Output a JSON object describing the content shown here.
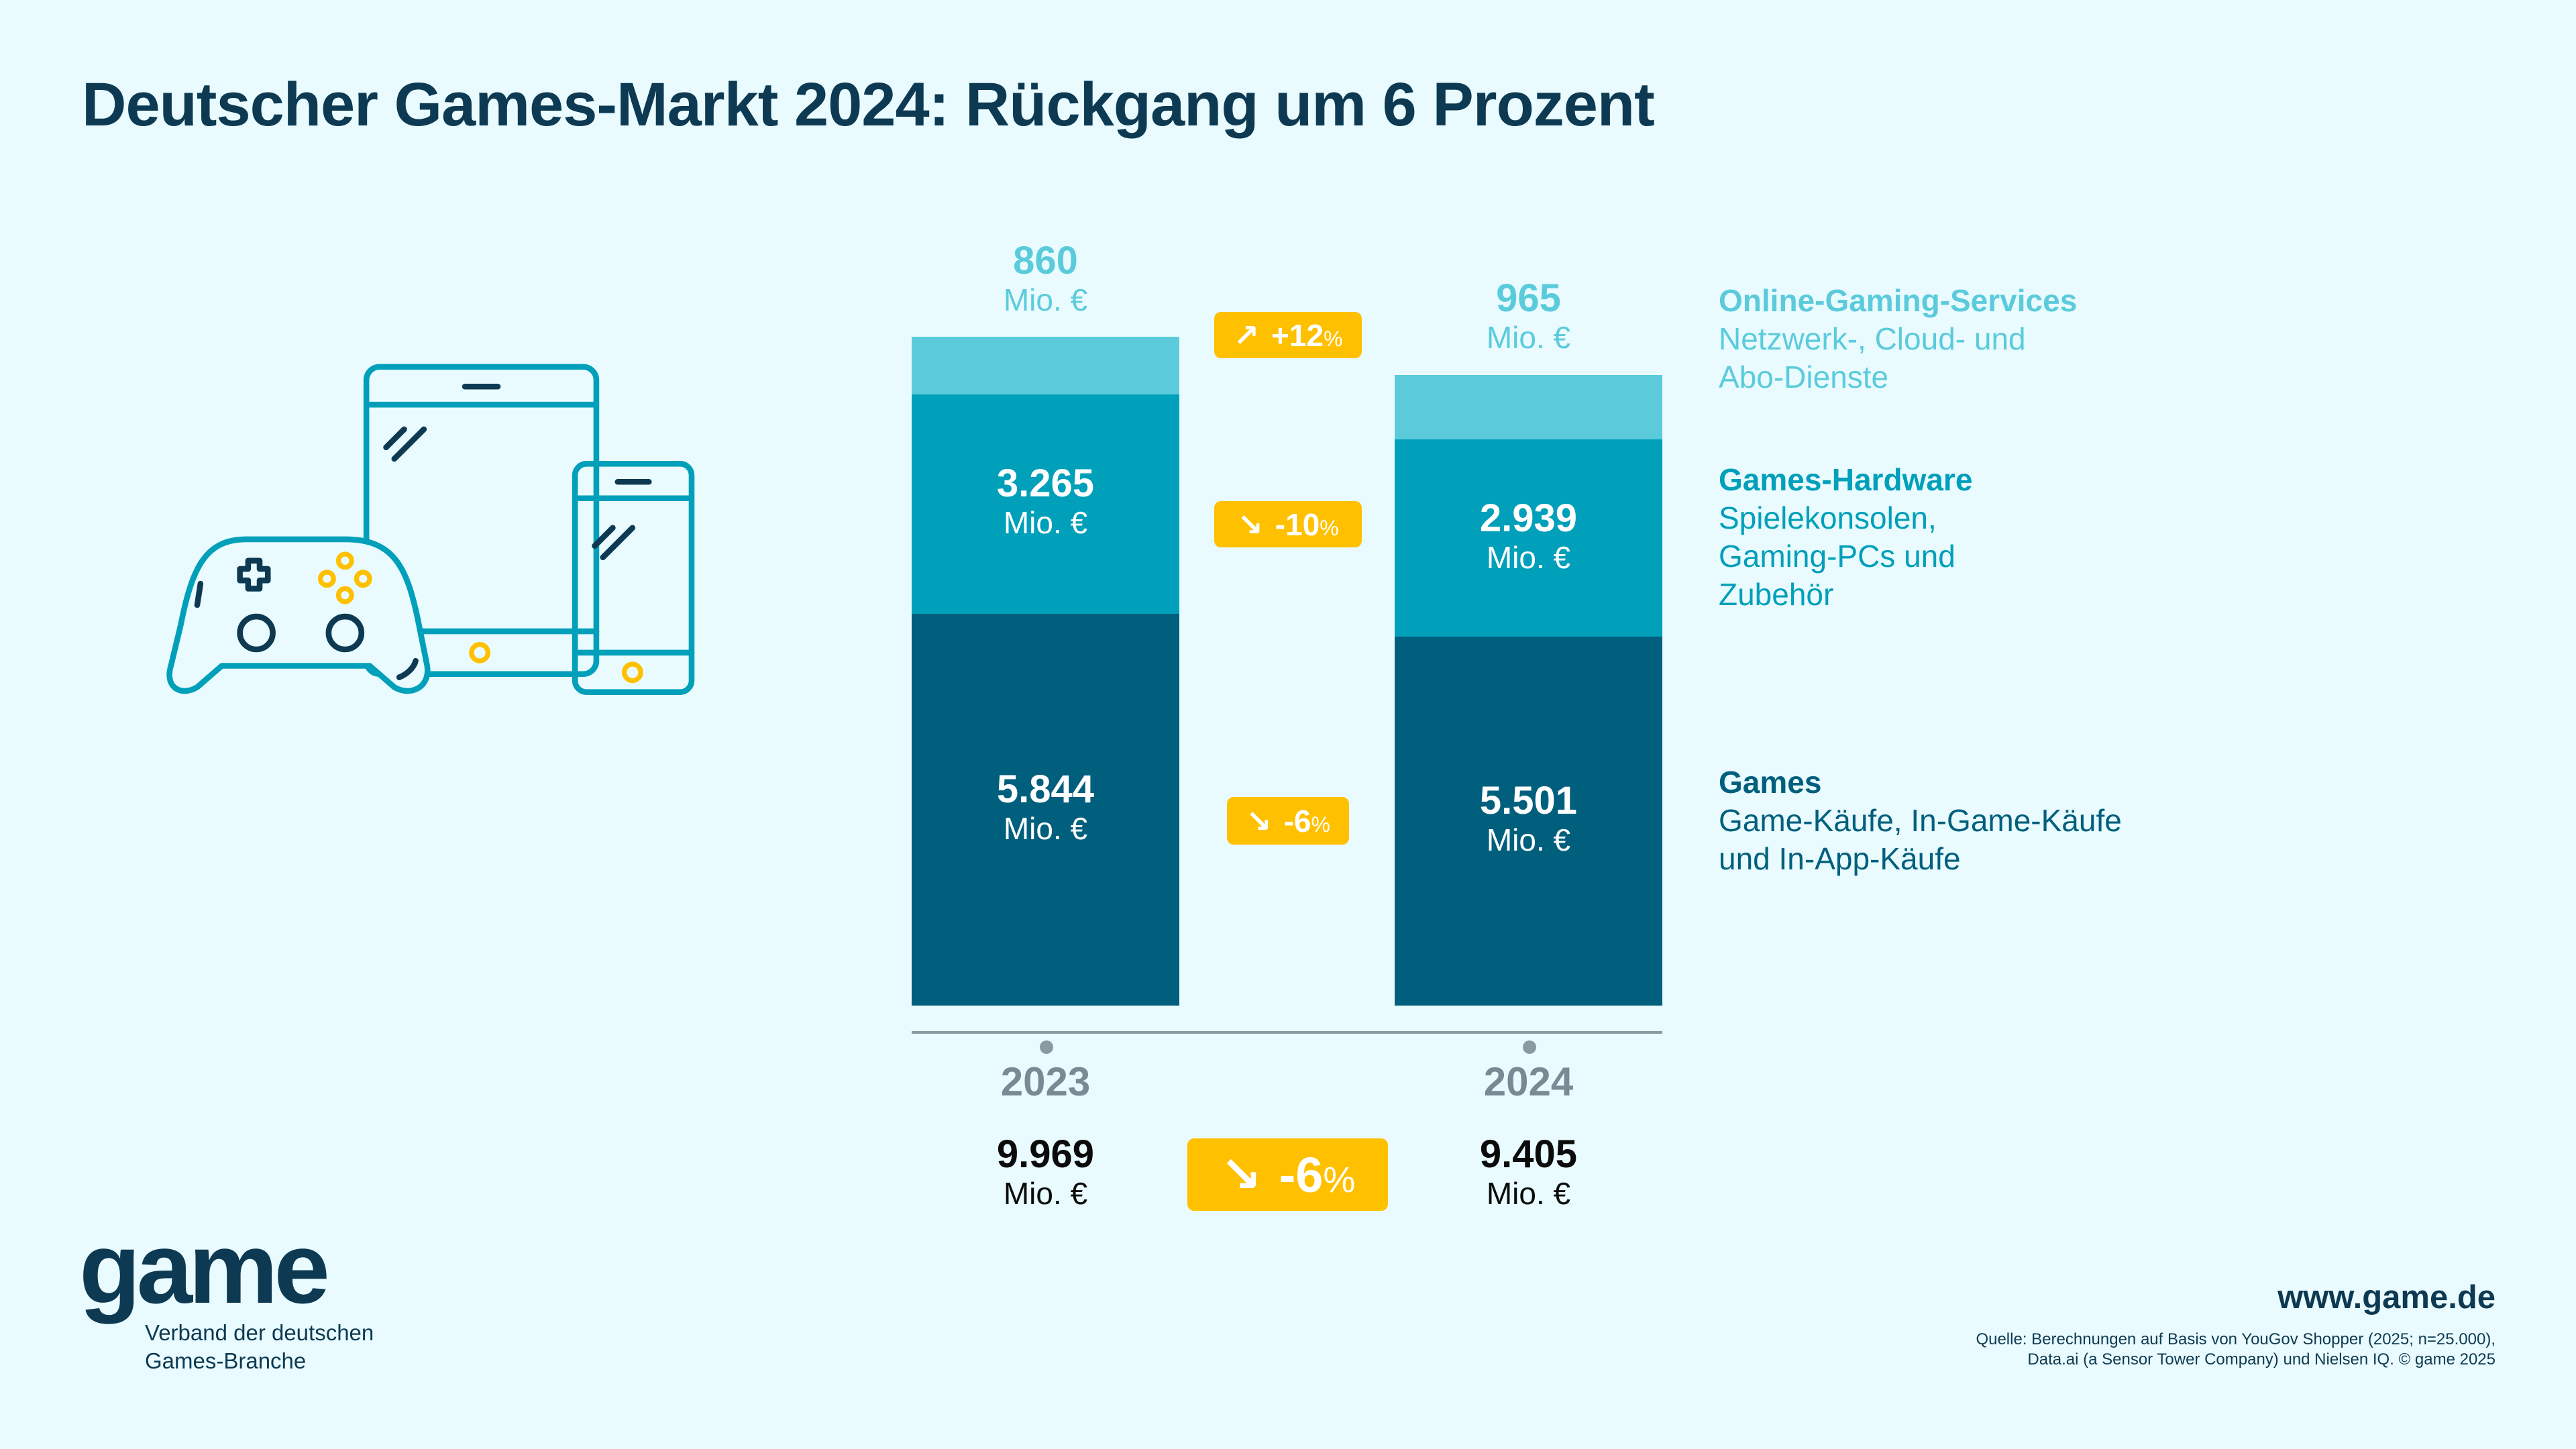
{
  "title": "Deutscher Games-Markt 2024: Rückgang um 6 Prozent",
  "colors": {
    "background": "#e9fbfe",
    "online": "#5bcbdc",
    "hardware": "#009fba",
    "games": "#005f7d",
    "badge": "#ffc000",
    "text": "#0d3a52"
  },
  "chart_data": {
    "type": "bar",
    "stacked": true,
    "title": "Deutscher Games-Markt 2024: Rückgang um 6 Prozent",
    "categories": [
      "2023",
      "2024"
    ],
    "unit": "Mio. €",
    "series": [
      {
        "name": "Games",
        "values": [
          5844,
          5501
        ],
        "display": [
          "5.844",
          "5.501"
        ],
        "change": "-6%",
        "change_num": "-6",
        "color": "#005f7d"
      },
      {
        "name": "Games-Hardware",
        "values": [
          3265,
          2939
        ],
        "display": [
          "3.265",
          "2.939"
        ],
        "change": "-10%",
        "change_num": "-10",
        "color": "#009fba"
      },
      {
        "name": "Online-Gaming-Services",
        "values": [
          860,
          965
        ],
        "display": [
          "860",
          "965"
        ],
        "change": "+12%",
        "change_num": "+12",
        "color": "#5bcbdc"
      }
    ],
    "totals": [
      9969,
      9405
    ],
    "totals_display": [
      "9.969",
      "9.405"
    ],
    "total_change": "-6%",
    "total_change_num": "-6",
    "percent_sign": "%"
  },
  "legend": [
    {
      "title": "Online-Gaming-Services",
      "lines": [
        "Netzwerk-, Cloud- und",
        "Abo-Dienste"
      ]
    },
    {
      "title": "Games-Hardware",
      "lines": [
        "Spielekonsolen,",
        "Gaming-PCs und",
        "Zubehör"
      ]
    },
    {
      "title": "Games",
      "lines": [
        "Game-Käufe, In-Game-Käufe",
        "und In-App-Käufe"
      ]
    }
  ],
  "logo": {
    "word": "game",
    "subtitle": [
      "Verband der deutschen",
      "Games-Branche"
    ]
  },
  "website": "www.game.de",
  "source": [
    "Quelle: Berechnungen auf Basis von YouGov Shopper (2025; n=25.000),",
    "Data.ai (a Sensor Tower Company) und Nielsen IQ. © game 2025"
  ]
}
